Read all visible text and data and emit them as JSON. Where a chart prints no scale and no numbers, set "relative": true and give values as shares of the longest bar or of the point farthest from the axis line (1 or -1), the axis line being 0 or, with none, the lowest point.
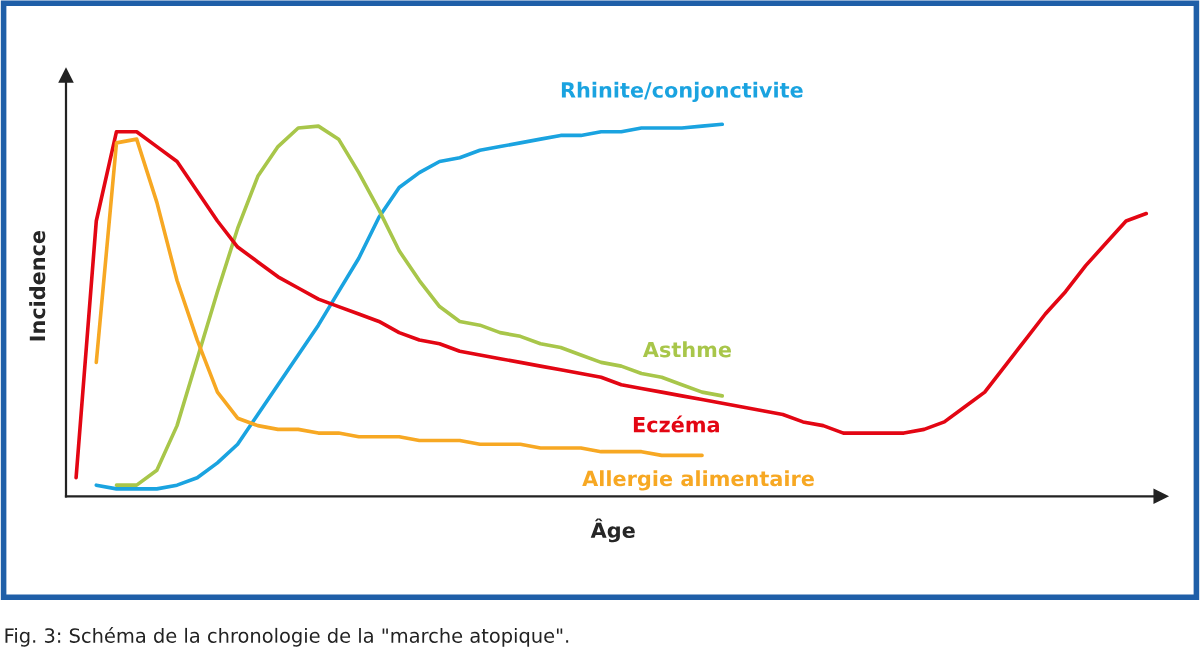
{
  "chart_data": {
    "type": "line",
    "relative": true,
    "xlabel": "Âge",
    "ylabel": "Incidence",
    "legend": false,
    "marker": "none",
    "line_style": "solid",
    "annotations": [
      "Fig. 3: Schéma de la chronologie de la \"marche atopique\"."
    ],
    "categories": [
      null,
      null,
      null,
      null,
      null,
      null,
      null,
      null,
      null,
      null,
      null,
      null,
      null,
      null,
      null,
      null,
      null,
      null,
      null,
      null,
      null,
      null,
      null,
      null,
      null,
      null,
      null,
      null,
      null,
      null,
      null,
      null,
      null,
      null,
      null,
      null,
      null,
      null,
      null,
      null,
      null,
      null,
      null,
      null,
      null,
      null,
      null,
      null,
      null,
      null,
      null,
      null,
      null,
      null
    ],
    "series": [
      {
        "name": "Rhinite/conjonctivite",
        "color": "#1aa3e0",
        "values": [
          null,
          0.03,
          0.02,
          0.02,
          0.02,
          0.03,
          0.05,
          0.09,
          0.14,
          0.22,
          0.3,
          0.38,
          0.46,
          0.55,
          0.64,
          0.75,
          0.83,
          0.87,
          0.9,
          0.91,
          0.93,
          0.94,
          0.95,
          0.96,
          0.97,
          0.97,
          0.98,
          0.98,
          0.99,
          0.99,
          0.99,
          0.995,
          1.0,
          null,
          null,
          null,
          null,
          null,
          null,
          null,
          null,
          null,
          null,
          null,
          null,
          null,
          null,
          null,
          null,
          null,
          null,
          null,
          null,
          null
        ]
      },
      {
        "name": "Asthme",
        "color": "#a8c64a",
        "values": [
          null,
          null,
          0.03,
          0.03,
          0.07,
          0.19,
          0.37,
          0.55,
          0.72,
          0.86,
          0.94,
          0.99,
          0.995,
          0.96,
          0.87,
          0.77,
          0.66,
          0.58,
          0.51,
          0.47,
          0.46,
          0.44,
          0.43,
          0.41,
          0.4,
          0.38,
          0.36,
          0.35,
          0.33,
          0.32,
          0.3,
          0.28,
          0.27,
          null,
          null,
          null,
          null,
          null,
          null,
          null,
          null,
          null,
          null,
          null,
          null,
          null,
          null,
          null,
          null,
          null,
          null,
          null,
          null,
          null
        ]
      },
      {
        "name": "Eczéma",
        "color": "#e30613",
        "values": [
          0.05,
          0.74,
          0.98,
          0.98,
          0.94,
          0.9,
          0.82,
          0.74,
          0.67,
          0.63,
          0.59,
          0.56,
          0.53,
          0.51,
          0.49,
          0.47,
          0.44,
          0.42,
          0.41,
          0.39,
          0.38,
          0.37,
          0.36,
          0.35,
          0.34,
          0.33,
          0.32,
          0.3,
          0.29,
          0.28,
          0.27,
          0.26,
          0.25,
          0.24,
          0.23,
          0.22,
          0.2,
          0.19,
          0.17,
          0.17,
          0.17,
          0.17,
          0.18,
          0.2,
          0.24,
          0.28,
          0.35,
          0.42,
          0.49,
          0.55,
          0.62,
          0.68,
          0.74,
          0.76
        ]
      },
      {
        "name": "Allergie alimentaire",
        "color": "#f7a823",
        "values": [
          null,
          0.36,
          0.95,
          0.96,
          0.79,
          0.58,
          0.42,
          0.28,
          0.21,
          0.19,
          0.18,
          0.18,
          0.17,
          0.17,
          0.16,
          0.16,
          0.16,
          0.15,
          0.15,
          0.15,
          0.14,
          0.14,
          0.14,
          0.13,
          0.13,
          0.13,
          0.12,
          0.12,
          0.12,
          0.11,
          0.11,
          0.11,
          null,
          null,
          null,
          null,
          null,
          null,
          null,
          null,
          null,
          null,
          null,
          null,
          null,
          null,
          null,
          null,
          null,
          null,
          null,
          null,
          null,
          null
        ]
      }
    ]
  }
}
